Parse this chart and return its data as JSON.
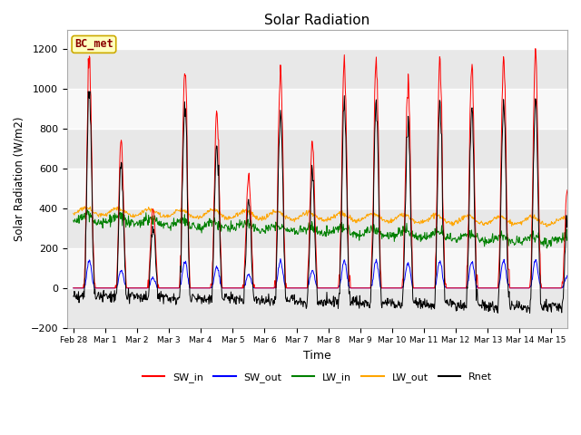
{
  "title": "Solar Radiation",
  "xlabel": "Time",
  "ylabel": "Solar Radiation (W/m2)",
  "ylim": [
    -200,
    1300
  ],
  "yticks": [
    -200,
    0,
    200,
    400,
    600,
    800,
    1000,
    1200
  ],
  "x_tick_labels": [
    "Feb 28",
    "Mar 1",
    "Mar 2",
    "Mar 3",
    "Mar 4",
    "Mar 5",
    "Mar 6",
    "Mar 7",
    "Mar 8",
    "Mar 9",
    "Mar 10",
    "Mar 11",
    "Mar 12",
    "Mar 13",
    "Mar 14",
    "Mar 15"
  ],
  "x_tick_days": [
    0,
    1,
    2,
    3,
    4,
    5,
    6,
    7,
    8,
    9,
    10,
    11,
    12,
    13,
    14,
    15
  ],
  "legend_labels": [
    "SW_in",
    "SW_out",
    "LW_in",
    "LW_out",
    "Rnet"
  ],
  "legend_colors": [
    "red",
    "blue",
    "green",
    "orange",
    "black"
  ],
  "station_label": "BC_met",
  "band_color_dark": "#e8e8e8",
  "band_color_light": "#f8f8f8",
  "plot_bg": "white",
  "day_amps": [
    1150,
    750,
    400,
    1130,
    900,
    580,
    1120,
    740,
    1160,
    1160,
    1060,
    1150,
    1130,
    1160,
    1170,
    500
  ],
  "seed": 12
}
